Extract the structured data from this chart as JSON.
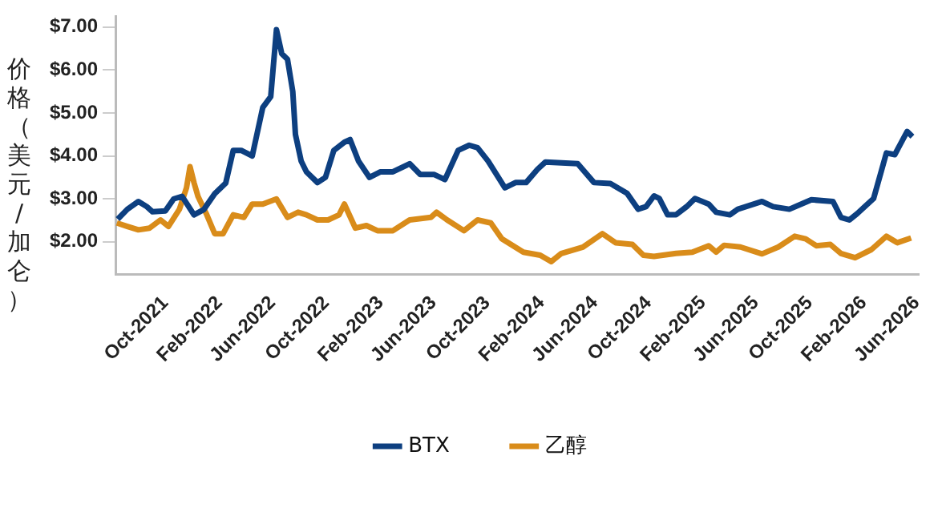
{
  "chart_data": {
    "type": "line",
    "ylabel": "价格（美元/加仑）",
    "xlim": [
      "2021-06-10",
      "2026-06-05"
    ],
    "xticks": [
      {
        "value": "2021-10",
        "label": "Oct-2021"
      },
      {
        "value": "2022-02",
        "label": "Feb-2022"
      },
      {
        "value": "2022-06",
        "label": "Jun-2022"
      },
      {
        "value": "2022-10",
        "label": "Oct-2022"
      },
      {
        "value": "2023-02",
        "label": "Feb-2023"
      },
      {
        "value": "2023-06",
        "label": "Jun-2023"
      },
      {
        "value": "2023-10",
        "label": "Oct-2023"
      },
      {
        "value": "2024-02",
        "label": "Feb-2024"
      },
      {
        "value": "2024-06",
        "label": "Jun-2024"
      },
      {
        "value": "2024-10",
        "label": "Oct-2024"
      },
      {
        "value": "2025-02",
        "label": "Feb-2025"
      },
      {
        "value": "2025-06",
        "label": "Jun-2025"
      },
      {
        "value": "2025-10",
        "label": "Oct-2025"
      },
      {
        "value": "2026-02",
        "label": "Feb-2026"
      },
      {
        "value": "2026-06",
        "label": "Jun-2026"
      }
    ],
    "ylim": [
      1.25,
      7.25
    ],
    "yticks": [
      {
        "value": 2,
        "label": "$2.00"
      },
      {
        "value": 3,
        "label": "$3.00"
      },
      {
        "value": 4,
        "label": "$4.00"
      },
      {
        "value": 5,
        "label": "$5.00"
      },
      {
        "value": 6,
        "label": "$6.00"
      },
      {
        "value": 7,
        "label": "$7.00"
      }
    ],
    "grid": false,
    "legend": "bottom",
    "marker": "none",
    "line_style": "solid",
    "series": [
      {
        "name": "BTX",
        "color": "#0d3f80",
        "x": [
          "2021-06-15",
          "2021-07-07",
          "2021-08-01",
          "2021-08-20",
          "2021-09-02",
          "2021-10-01",
          "2021-10-20",
          "2021-11-08",
          "2021-12-05",
          "2021-12-27",
          "2022-01-21",
          "2022-02-15",
          "2022-03-04",
          "2022-03-22",
          "2022-04-16",
          "2022-05-10",
          "2022-05-28",
          "2022-06-10",
          "2022-06-22",
          "2022-07-05",
          "2022-07-17",
          "2022-07-23",
          "2022-08-05",
          "2022-08-17",
          "2022-09-11",
          "2022-09-29",
          "2022-10-18",
          "2022-11-11",
          "2022-11-24",
          "2022-12-13",
          "2023-01-07",
          "2023-02-01",
          "2023-03-01",
          "2023-04-08",
          "2023-05-02",
          "2023-06-02",
          "2023-06-27",
          "2023-07-27",
          "2023-08-21",
          "2023-09-09",
          "2023-10-03",
          "2023-11-10",
          "2023-12-04",
          "2023-12-28",
          "2024-01-23",
          "2024-02-10",
          "2024-04-23",
          "2024-05-30",
          "2024-07-06",
          "2024-08-13",
          "2024-09-07",
          "2024-09-25",
          "2024-10-13",
          "2024-10-25",
          "2024-11-13",
          "2024-12-02",
          "2024-12-26",
          "2025-01-14",
          "2025-02-14",
          "2025-03-03",
          "2025-04-03",
          "2025-04-21",
          "2025-06-15",
          "2025-07-10",
          "2025-08-16",
          "2025-10-05",
          "2025-11-23",
          "2025-12-11",
          "2025-12-30",
          "2026-01-17",
          "2026-02-23",
          "2026-03-12",
          "2026-03-24",
          "2026-04-12",
          "2026-04-24",
          "2026-05-10",
          "2026-05-22"
        ],
        "values": [
          2.53,
          2.76,
          2.94,
          2.82,
          2.7,
          2.72,
          3.0,
          3.06,
          2.63,
          2.75,
          3.12,
          3.37,
          4.13,
          4.13,
          4.0,
          5.13,
          5.38,
          6.94,
          6.38,
          6.25,
          5.5,
          4.5,
          3.88,
          3.63,
          3.38,
          3.5,
          4.13,
          4.32,
          4.38,
          3.88,
          3.5,
          3.63,
          3.63,
          3.82,
          3.57,
          3.57,
          3.45,
          4.13,
          4.25,
          4.19,
          3.88,
          3.26,
          3.38,
          3.38,
          3.69,
          3.86,
          3.82,
          3.38,
          3.36,
          3.13,
          2.76,
          2.82,
          3.07,
          3.01,
          2.63,
          2.63,
          2.82,
          3.01,
          2.88,
          2.69,
          2.63,
          2.76,
          2.94,
          2.82,
          2.76,
          2.98,
          2.94,
          2.57,
          2.51,
          2.66,
          3.01,
          3.63,
          4.07,
          4.03,
          4.26,
          4.57,
          4.45
        ]
      },
      {
        "name": "乙醇",
        "color": "#d98c1a",
        "x": [
          "2021-06-13",
          "2021-07-07",
          "2021-08-01",
          "2021-08-26",
          "2021-09-20",
          "2021-10-08",
          "2021-11-02",
          "2021-11-18",
          "2021-11-26",
          "2021-12-05",
          "2021-12-14",
          "2022-01-03",
          "2022-01-21",
          "2022-02-09",
          "2022-03-04",
          "2022-03-28",
          "2022-04-16",
          "2022-05-10",
          "2022-06-10",
          "2022-07-05",
          "2022-07-29",
          "2022-08-17",
          "2022-09-11",
          "2022-10-05",
          "2022-10-30",
          "2022-11-11",
          "2022-12-06",
          "2022-12-31",
          "2023-01-25",
          "2023-03-01",
          "2023-04-08",
          "2023-05-26",
          "2023-06-08",
          "2023-07-02",
          "2023-08-09",
          "2023-09-09",
          "2023-10-09",
          "2023-11-03",
          "2023-12-22",
          "2024-01-29",
          "2024-02-23",
          "2024-03-17",
          "2024-05-05",
          "2024-06-18",
          "2024-07-18",
          "2024-08-25",
          "2024-09-19",
          "2024-10-13",
          "2024-12-02",
          "2025-01-08",
          "2025-02-14",
          "2025-03-03",
          "2025-03-21",
          "2025-04-27",
          "2025-06-15",
          "2025-07-22",
          "2025-08-28",
          "2025-09-22",
          "2025-10-16",
          "2025-11-17",
          "2025-12-11",
          "2026-01-12",
          "2026-02-18",
          "2026-03-24",
          "2026-04-18",
          "2026-05-19"
        ],
        "values": [
          2.44,
          2.36,
          2.28,
          2.32,
          2.51,
          2.36,
          2.76,
          3.26,
          3.75,
          3.38,
          3.06,
          2.63,
          2.19,
          2.19,
          2.63,
          2.57,
          2.88,
          2.88,
          3.0,
          2.57,
          2.69,
          2.63,
          2.51,
          2.51,
          2.63,
          2.88,
          2.32,
          2.38,
          2.26,
          2.26,
          2.51,
          2.57,
          2.69,
          2.51,
          2.26,
          2.51,
          2.44,
          2.07,
          1.76,
          1.69,
          1.54,
          1.73,
          1.88,
          2.19,
          1.98,
          1.94,
          1.69,
          1.66,
          1.73,
          1.76,
          1.91,
          1.76,
          1.92,
          1.88,
          1.72,
          1.88,
          2.13,
          2.07,
          1.91,
          1.94,
          1.73,
          1.63,
          1.82,
          2.13,
          1.98,
          2.09
        ]
      }
    ]
  }
}
